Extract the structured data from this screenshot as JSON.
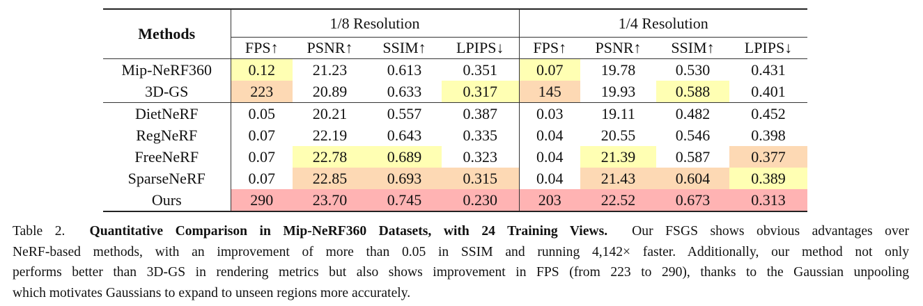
{
  "table": {
    "methods_header": "Methods",
    "groups": [
      "1/8 Resolution",
      "1/4 Resolution"
    ],
    "metrics": [
      "FPS↑",
      "PSNR↑",
      "SSIM↑",
      "LPIPS↓"
    ],
    "highlight_colors": {
      "yellow": "#ffffb3",
      "orange": "#fdd9b4",
      "red": "#ffb3b3"
    },
    "rows": [
      {
        "method": "Mip-NeRF360",
        "values": [
          "0.12",
          "21.23",
          "0.613",
          "0.351",
          "0.07",
          "19.78",
          "0.530",
          "0.431"
        ],
        "highlight": [
          "yellow",
          "",
          "",
          "",
          "yellow",
          "",
          "",
          ""
        ]
      },
      {
        "method": "3D-GS",
        "values": [
          "223",
          "20.89",
          "0.633",
          "0.317",
          "145",
          "19.93",
          "0.588",
          "0.401"
        ],
        "highlight": [
          "orange",
          "",
          "",
          "yellow",
          "orange",
          "",
          "yellow",
          ""
        ]
      },
      {
        "method": "DietNeRF",
        "values": [
          "0.05",
          "20.21",
          "0.557",
          "0.387",
          "0.03",
          "19.11",
          "0.482",
          "0.452"
        ],
        "highlight": [
          "",
          "",
          "",
          "",
          "",
          "",
          "",
          ""
        ]
      },
      {
        "method": "RegNeRF",
        "values": [
          "0.07",
          "22.19",
          "0.643",
          "0.335",
          "0.04",
          "20.55",
          "0.546",
          "0.398"
        ],
        "highlight": [
          "",
          "",
          "",
          "",
          "",
          "",
          "",
          ""
        ]
      },
      {
        "method": "FreeNeRF",
        "values": [
          "0.07",
          "22.78",
          "0.689",
          "0.323",
          "0.04",
          "21.39",
          "0.587",
          "0.377"
        ],
        "highlight": [
          "",
          "yellow",
          "yellow",
          "",
          "",
          "yellow",
          "",
          "orange"
        ]
      },
      {
        "method": "SparseNeRF",
        "values": [
          "0.07",
          "22.85",
          "0.693",
          "0.315",
          "0.04",
          "21.43",
          "0.604",
          "0.389"
        ],
        "highlight": [
          "",
          "orange",
          "orange",
          "orange",
          "",
          "orange",
          "orange",
          "yellow"
        ]
      },
      {
        "method": "Ours",
        "values": [
          "290",
          "23.70",
          "0.745",
          "0.230",
          "203",
          "22.52",
          "0.673",
          "0.313"
        ],
        "highlight": [
          "red",
          "red",
          "red",
          "red",
          "red",
          "red",
          "red",
          "red"
        ]
      }
    ]
  },
  "caption": {
    "label": "Table 2.",
    "title": "Quantitative Comparison in Mip-NeRF360 Datasets, with 24 Training Views.",
    "line1_rest": "Our FSGS shows obvious advantages over",
    "line2": "NeRF-based methods, with an improvement of more than 0.05 in SSIM and running 4,142× faster. Additionally, our method not only",
    "line3": "performs better than 3D-GS in rendering metrics but also shows improvement in FPS (from 223 to 290), thanks to the Gaussian unpooling",
    "line4": "which motivates Gaussians to expand to unseen regions more accurately."
  }
}
